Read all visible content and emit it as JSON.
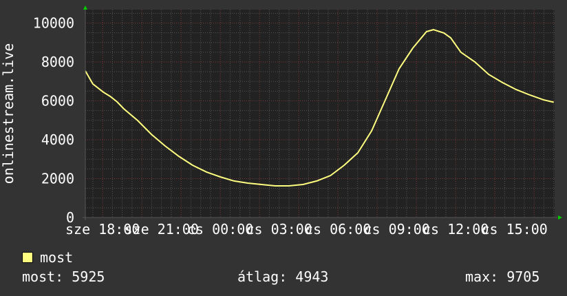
{
  "chart_data": {
    "type": "line",
    "title": "",
    "xlabel": "",
    "ylabel": "onlinestream.live",
    "ylim": [
      0,
      10000
    ],
    "y_ticks": [
      "0",
      "2000",
      "4000",
      "6000",
      "8000",
      "10000"
    ],
    "x_ticks": [
      {
        "time": "18:00",
        "label": "sze 18:00"
      },
      {
        "time": "21:00",
        "label": "sze 21:00"
      },
      {
        "time": "00:00",
        "label": "cs 00:00"
      },
      {
        "time": "03:00",
        "label": "cs 03:00"
      },
      {
        "time": "06:00",
        "label": "cs 06:00"
      },
      {
        "time": "09:00",
        "label": "cs 09:00"
      },
      {
        "time": "12:00",
        "label": "cs 12:00"
      },
      {
        "time": "15:00",
        "label": "cs 15:00"
      }
    ],
    "xlim": [
      "17:07",
      "17:00"
    ],
    "grid": true,
    "background_color": "#333333",
    "plot_background": "#222222",
    "series": [
      {
        "name": "most",
        "color": "#ffff80",
        "x": [
          "17:07",
          "17:30",
          "18:02",
          "18:23",
          "18:44",
          "19:05",
          "19:47",
          "20:29",
          "21:11",
          "21:53",
          "22:35",
          "23:18",
          "00:00",
          "00:42",
          "01:24",
          "02:06",
          "02:48",
          "03:30",
          "04:13",
          "04:55",
          "05:37",
          "06:19",
          "07:01",
          "07:43",
          "08:25",
          "09:07",
          "09:49",
          "10:31",
          "10:52",
          "11:24",
          "11:45",
          "12:16",
          "12:59",
          "13:41",
          "14:23",
          "15:05",
          "15:47",
          "16:29",
          "17:00"
        ],
        "values": [
          7540,
          6870,
          6450,
          6230,
          5950,
          5590,
          4990,
          4280,
          3680,
          3150,
          2690,
          2340,
          2090,
          1880,
          1770,
          1700,
          1630,
          1630,
          1700,
          1880,
          2160,
          2690,
          3330,
          4460,
          6050,
          7650,
          8710,
          9560,
          9660,
          9490,
          9240,
          8500,
          8000,
          7360,
          6940,
          6580,
          6300,
          6050,
          5930
        ]
      }
    ],
    "legend": {
      "placement": "bottom-left",
      "label": "most"
    },
    "stats": {
      "current": "most: 5925",
      "average": "átlag: 4943",
      "max": "max: 9705"
    }
  }
}
